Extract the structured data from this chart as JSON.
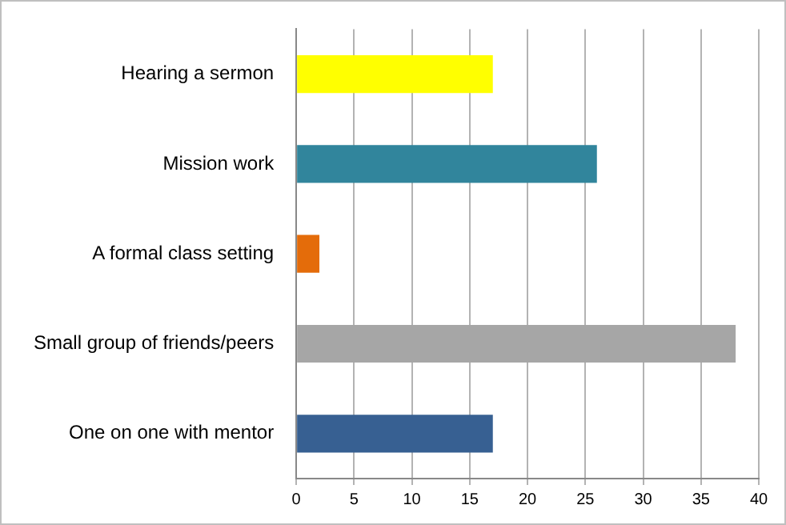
{
  "chart_data": {
    "type": "bar",
    "orientation": "horizontal",
    "categories": [
      "Hearing a sermon",
      "Mission work",
      "A formal class setting",
      "Small group of friends/peers",
      "One on one with mentor"
    ],
    "values": [
      17,
      26,
      2,
      38,
      17
    ],
    "colors": [
      "#ffff00",
      "#31859c",
      "#e46c0a",
      "#a6a6a6",
      "#376092"
    ],
    "xlim": [
      0,
      40
    ],
    "xticks": [
      0,
      5,
      10,
      15,
      20,
      25,
      30,
      35,
      40
    ],
    "grid": "x",
    "legend": false
  }
}
